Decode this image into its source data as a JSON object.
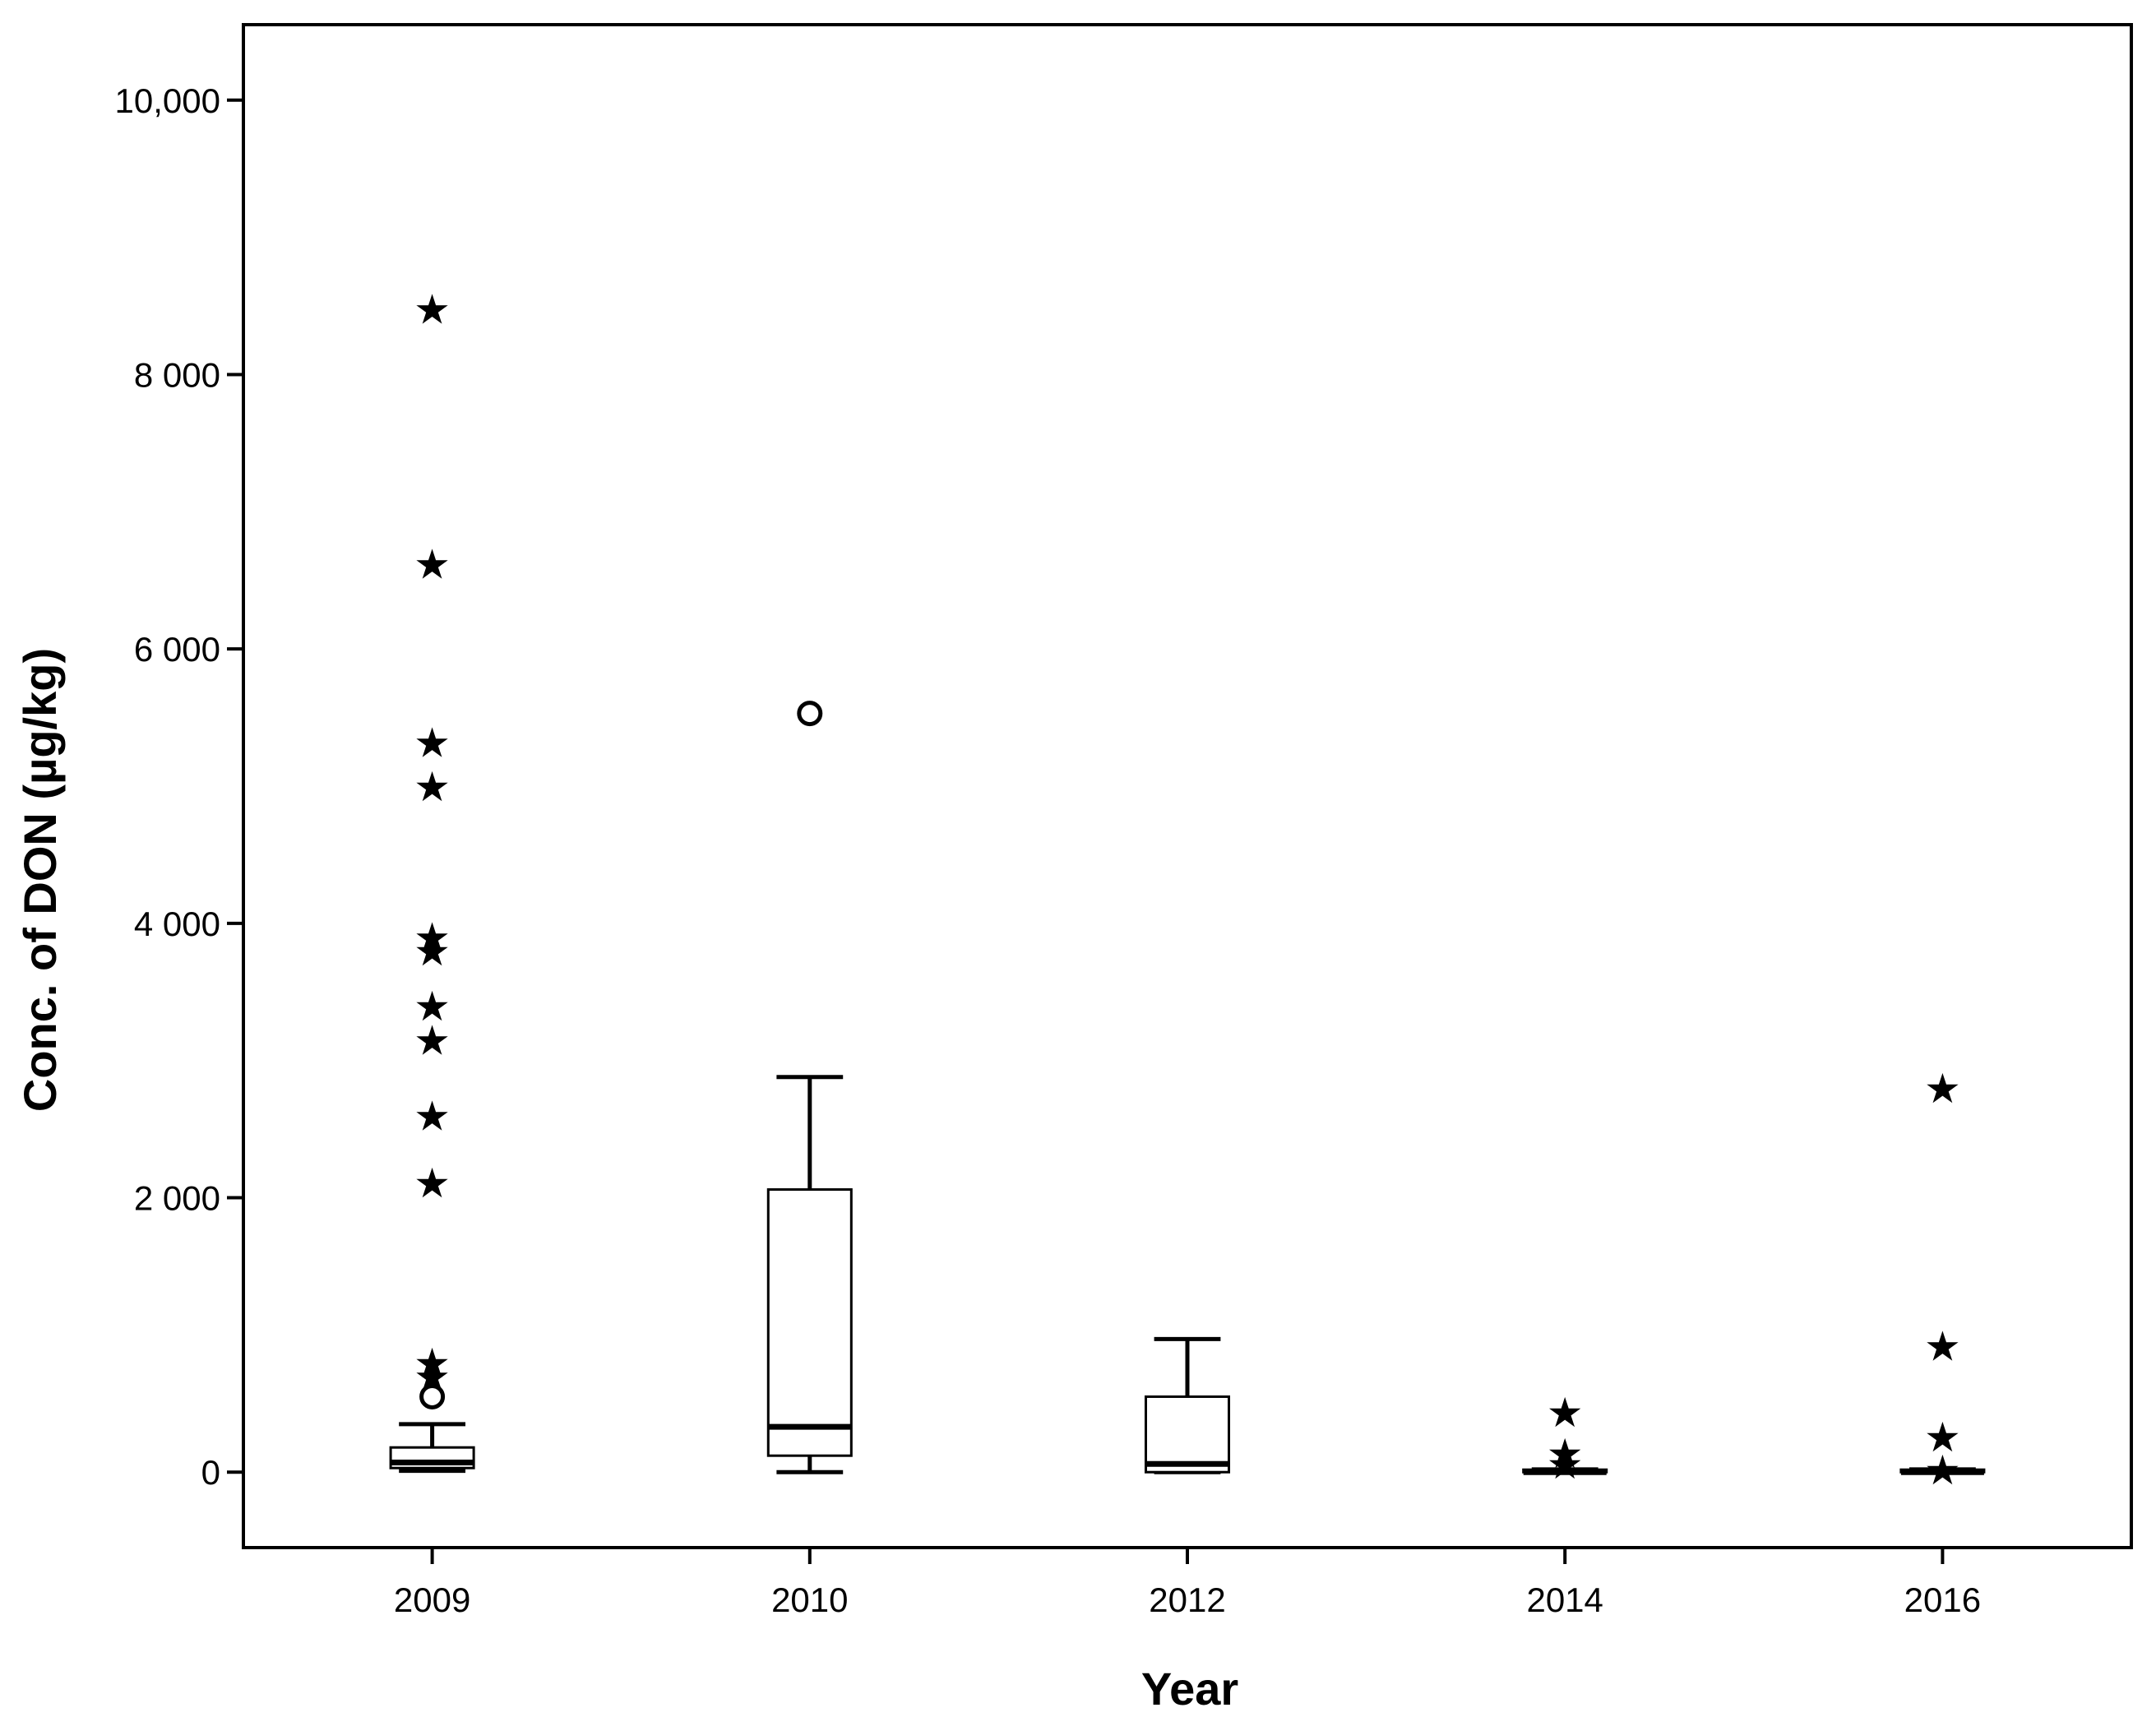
{
  "chart_data": {
    "type": "boxplot",
    "title": "",
    "xlabel": "Year",
    "ylabel": "Conc. of DON (µg/kg)",
    "ylim": [
      -550,
      10550
    ],
    "y_ticks": [
      0,
      2000,
      4000,
      6000,
      8000,
      10000
    ],
    "y_tick_labels": [
      "0",
      "2 000",
      "4 000",
      "6 000",
      "8 000",
      "10,000"
    ],
    "grid": false,
    "legend": "none",
    "categories": [
      "2009",
      "2010",
      "2012",
      "2014",
      "2016"
    ],
    "boxes": [
      {
        "category": "2009",
        "whisker_low": 10,
        "q1": 30,
        "median": 70,
        "q3": 180,
        "whisker_high": 350,
        "outliers": [
          550
        ],
        "extremes": [
          8480,
          6620,
          5320,
          5000,
          3900,
          3800,
          3400,
          3150,
          2600,
          2110,
          800,
          700
        ]
      },
      {
        "category": "2010",
        "whisker_low": 0,
        "q1": 120,
        "median": 330,
        "q3": 2060,
        "whisker_high": 2880,
        "outliers": [
          5530
        ],
        "extremes": []
      },
      {
        "category": "2012",
        "whisker_low": 0,
        "q1": 0,
        "median": 60,
        "q3": 550,
        "whisker_high": 970,
        "outliers": [],
        "extremes": []
      },
      {
        "category": "2014",
        "whisker_low": 0,
        "q1": 0,
        "median": 0,
        "q3": 10,
        "whisker_high": 20,
        "outliers": [],
        "extremes": [
          440,
          140,
          60
        ]
      },
      {
        "category": "2016",
        "whisker_low": 0,
        "q1": 0,
        "median": 0,
        "q3": 10,
        "whisker_high": 20,
        "outliers": [],
        "extremes": [
          2800,
          920,
          260,
          20
        ]
      }
    ]
  }
}
